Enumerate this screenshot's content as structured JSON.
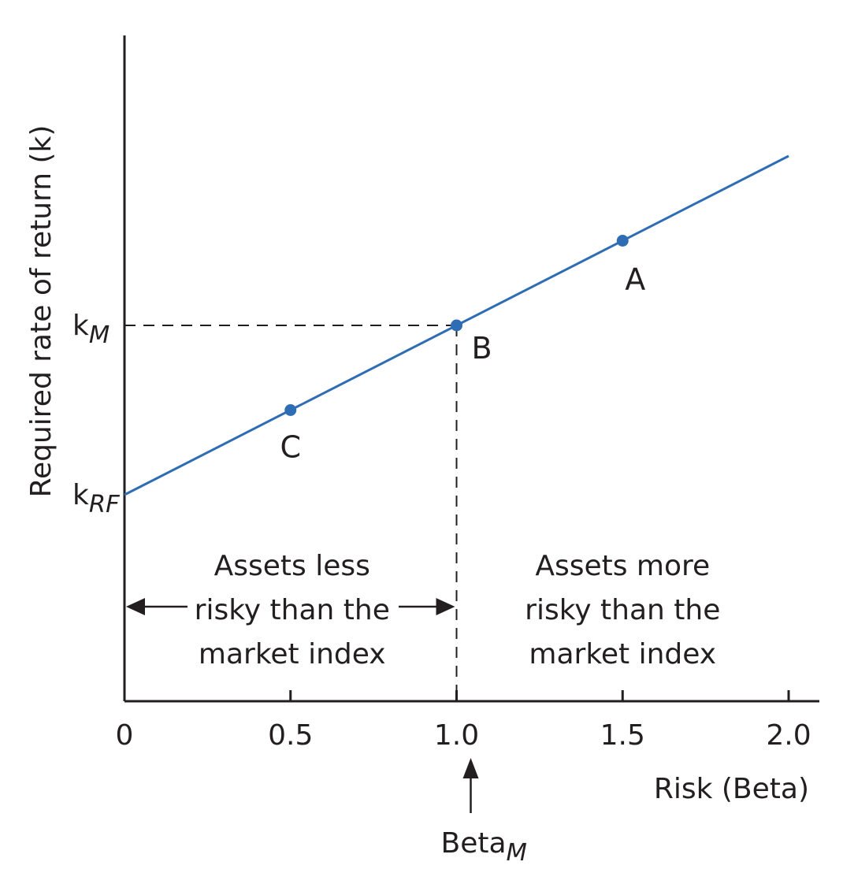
{
  "chart_data": {
    "type": "line",
    "xlabel": "Risk (Beta)",
    "ylabel": "Required rate of return (k)",
    "xlim": [
      0,
      2.05
    ],
    "x_ticks": [
      "0",
      "0.5",
      "1.0",
      "1.5",
      "2.0"
    ],
    "x_tick_values": [
      0,
      0.5,
      1.0,
      1.5,
      2.0
    ],
    "y_ticks": [
      {
        "label": "k",
        "sub": "M",
        "value": 1.0
      },
      {
        "label": "k",
        "sub": "RF",
        "value": 0.0
      }
    ],
    "line": {
      "x": [
        0,
        2.0
      ],
      "y": [
        0.0,
        2.0
      ],
      "color": "#2e6db4"
    },
    "points": [
      {
        "name": "A",
        "x": 1.5,
        "y": 1.5
      },
      {
        "name": "B",
        "x": 1.0,
        "y": 1.0
      },
      {
        "name": "C",
        "x": 0.5,
        "y": 0.5
      }
    ],
    "annotations": {
      "left_region": [
        "Assets less",
        "risky than the",
        "market index"
      ],
      "right_region": [
        "Assets more",
        "risky than the",
        "market index"
      ],
      "beta_marker": {
        "label": "Beta",
        "sub": "M",
        "x": 1.0
      }
    },
    "colors": {
      "line": "#2e6db4",
      "point": "#2e6db4",
      "ink": "#231f20"
    }
  }
}
